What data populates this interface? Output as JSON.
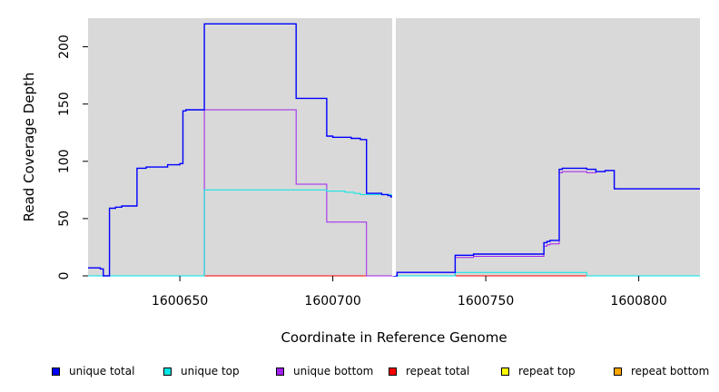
{
  "chart_data": {
    "type": "line",
    "title": "",
    "xlabel": "Coordinate in Reference Genome",
    "ylabel": "Read Coverage Depth",
    "xlim": [
      1600620,
      1600820
    ],
    "ylim": [
      0,
      225
    ],
    "x_ticks": [
      1600650,
      1600700,
      1600750,
      1600800
    ],
    "y_ticks": [
      0,
      50,
      100,
      150,
      200
    ],
    "divider_x": 1600720,
    "grid": false,
    "background": "#d9d9d9",
    "legend_placement": "bottom",
    "series": [
      {
        "name": "unique total",
        "color": "#0000ff",
        "points": [
          [
            1600620,
            7
          ],
          [
            1600624,
            6
          ],
          [
            1600625,
            0
          ],
          [
            1600627,
            59
          ],
          [
            1600629,
            60
          ],
          [
            1600631,
            61
          ],
          [
            1600636,
            94
          ],
          [
            1600639,
            95
          ],
          [
            1600646,
            97
          ],
          [
            1600650,
            98
          ],
          [
            1600651,
            144
          ],
          [
            1600652,
            145
          ],
          [
            1600658,
            220
          ],
          [
            1600688,
            155
          ],
          [
            1600698,
            122
          ],
          [
            1600700,
            121
          ],
          [
            1600706,
            120
          ],
          [
            1600709,
            119
          ],
          [
            1600711,
            72
          ],
          [
            1600716,
            71
          ],
          [
            1600718,
            70
          ],
          [
            1600719,
            69
          ],
          [
            1600720,
            0
          ],
          [
            1600721,
            3
          ],
          [
            1600740,
            18
          ],
          [
            1600746,
            19
          ],
          [
            1600769,
            29
          ],
          [
            1600770,
            30
          ],
          [
            1600771,
            31
          ],
          [
            1600774,
            93
          ],
          [
            1600775,
            94
          ],
          [
            1600783,
            93
          ],
          [
            1600786,
            91
          ],
          [
            1600789,
            92
          ],
          [
            1600792,
            76
          ],
          [
            1600820,
            76
          ]
        ]
      },
      {
        "name": "unique top",
        "color": "#00e5e5",
        "points": [
          [
            1600620,
            0
          ],
          [
            1600658,
            75
          ],
          [
            1600698,
            74
          ],
          [
            1600704,
            73
          ],
          [
            1600707,
            72
          ],
          [
            1600709,
            71
          ],
          [
            1600719,
            70
          ],
          [
            1600720,
            0
          ],
          [
            1600740,
            3
          ],
          [
            1600783,
            0
          ],
          [
            1600820,
            0
          ]
        ]
      },
      {
        "name": "unique bottom",
        "color": "#a020f0",
        "points": [
          [
            1600620,
            7
          ],
          [
            1600624,
            6
          ],
          [
            1600625,
            0
          ],
          [
            1600658,
            145
          ],
          [
            1600688,
            80
          ],
          [
            1600698,
            47
          ],
          [
            1600711,
            0
          ],
          [
            1600740,
            16
          ],
          [
            1600746,
            17
          ],
          [
            1600769,
            26
          ],
          [
            1600770,
            27
          ],
          [
            1600771,
            28
          ],
          [
            1600774,
            90
          ],
          [
            1600775,
            91
          ],
          [
            1600783,
            90
          ],
          [
            1600786,
            91
          ],
          [
            1600789,
            92
          ],
          [
            1600792,
            76
          ],
          [
            1600820,
            76
          ]
        ]
      },
      {
        "name": "repeat total",
        "color": "#ff0000",
        "points": [
          [
            1600620,
            0
          ],
          [
            1600820,
            0
          ]
        ]
      },
      {
        "name": "repeat top",
        "color": "#ffff00",
        "points": [
          [
            1600620,
            0
          ],
          [
            1600820,
            0
          ]
        ]
      },
      {
        "name": "repeat bottom",
        "color": "#ffa500",
        "points": [
          [
            1600620,
            0
          ],
          [
            1600820,
            0
          ]
        ]
      }
    ]
  },
  "legend": {
    "items": [
      {
        "label": "unique total",
        "color": "#0000ff"
      },
      {
        "label": "unique top",
        "color": "#00e5e5"
      },
      {
        "label": "unique bottom",
        "color": "#a020f0"
      },
      {
        "label": "repeat total",
        "color": "#ff0000"
      },
      {
        "label": "repeat top",
        "color": "#ffff00"
      },
      {
        "label": "repeat bottom",
        "color": "#ffa500"
      }
    ]
  }
}
